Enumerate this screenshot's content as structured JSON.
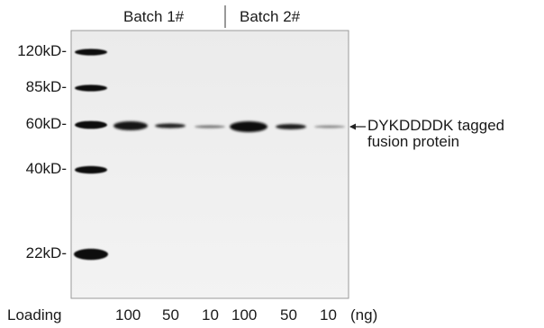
{
  "groups": [
    {
      "label": "Batch 1#"
    },
    {
      "label": "Batch 2#"
    }
  ],
  "markers": [
    {
      "label": "120kD-"
    },
    {
      "label": "85kD-"
    },
    {
      "label": "60kD-"
    },
    {
      "label": "40kD-"
    },
    {
      "label": "22kD-"
    }
  ],
  "loading": {
    "label": "Loading",
    "lanes": [
      "100",
      "50",
      "10",
      "100",
      "50",
      "10"
    ],
    "unit": "(ng)"
  },
  "annotation": {
    "line1": "DYKDDDDK tagged",
    "line2": "fusion protein"
  }
}
